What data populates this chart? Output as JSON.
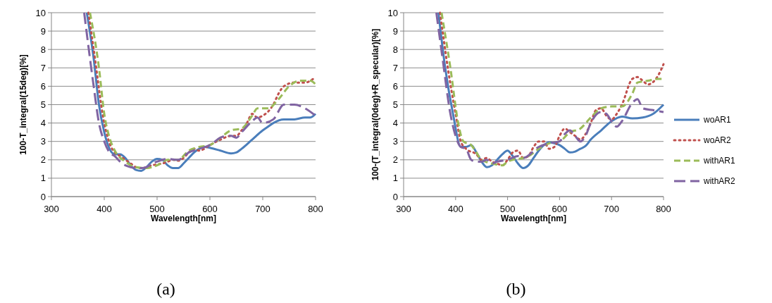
{
  "chart_data": [
    {
      "type": "line",
      "xlabel": "Wavelength[nm]",
      "ylabel": "100-T_integral(15deg)[%]",
      "annotations": [
        "(a)"
      ],
      "xlim": [
        300,
        800
      ],
      "xticks": [
        300,
        400,
        500,
        600,
        700,
        800
      ],
      "ylim": [
        0,
        10
      ],
      "yticks": [
        0,
        1,
        2,
        3,
        4,
        5,
        6,
        7,
        8,
        9,
        10
      ],
      "grid": "y",
      "legend": false,
      "series": [
        {
          "color": "#4a7ebb",
          "line_style": "solid",
          "x": [
            367,
            380,
            390,
            400,
            410,
            420,
            430,
            440,
            450,
            460,
            470,
            480,
            490,
            500,
            510,
            520,
            530,
            540,
            550,
            560,
            570,
            580,
            590,
            600,
            620,
            640,
            650,
            660,
            680,
            700,
            710,
            720,
            740,
            760,
            780,
            790,
            800
          ],
          "values": [
            10,
            7.5,
            5,
            3.5,
            2.6,
            2.3,
            2.3,
            2.1,
            1.7,
            1.45,
            1.4,
            1.6,
            1.9,
            2.05,
            2,
            1.7,
            1.55,
            1.55,
            1.8,
            2.1,
            2.4,
            2.6,
            2.7,
            2.65,
            2.5,
            2.35,
            2.4,
            2.6,
            3.1,
            3.6,
            3.8,
            4,
            4.2,
            4.2,
            4.3,
            4.3,
            4.5
          ]
        },
        {
          "color": "#c0504d",
          "line_style": "dotted",
          "x": [
            370,
            380,
            400,
            410,
            420,
            430,
            440,
            450,
            460,
            470,
            480,
            490,
            500,
            510,
            520,
            530,
            540,
            550,
            560,
            570,
            580,
            600,
            620,
            640,
            650,
            660,
            670,
            680,
            690,
            700,
            720,
            730,
            740,
            760,
            780,
            800
          ],
          "values": [
            10,
            8,
            4,
            2.9,
            2.4,
            2.2,
            2,
            1.8,
            1.6,
            1.55,
            1.6,
            1.7,
            1.75,
            1.8,
            1.9,
            2,
            1.95,
            2.1,
            2.4,
            2.6,
            2.5,
            2.8,
            3.1,
            3.3,
            3.3,
            3.6,
            4,
            4.5,
            4.3,
            4.4,
            5,
            5.6,
            6,
            6.2,
            6.2,
            6.5
          ]
        },
        {
          "color": "#9bbb59",
          "line_style": "dashed",
          "x": [
            373,
            390,
            400,
            410,
            420,
            440,
            460,
            480,
            500,
            520,
            540,
            560,
            580,
            600,
            620,
            640,
            660,
            680,
            690,
            700,
            710,
            730,
            750,
            770,
            790,
            800
          ],
          "values": [
            10,
            7,
            4.5,
            3.2,
            2.5,
            1.9,
            1.6,
            1.55,
            1.7,
            2,
            2,
            2.5,
            2.7,
            2.8,
            3.2,
            3.6,
            3.7,
            4.4,
            4.8,
            4.8,
            4.8,
            5.3,
            6,
            6.3,
            6.3,
            6.1
          ]
        },
        {
          "color": "#8064a2",
          "line_style": "dashed",
          "x": [
            362,
            380,
            390,
            400,
            410,
            420,
            430,
            440,
            450,
            460,
            470,
            480,
            490,
            500,
            520,
            540,
            560,
            580,
            600,
            620,
            630,
            640,
            650,
            660,
            680,
            690,
            700,
            720,
            740,
            760,
            780,
            800
          ],
          "values": [
            10,
            6,
            4,
            3,
            2.4,
            2.2,
            1.9,
            1.7,
            1.6,
            1.55,
            1.55,
            1.6,
            1.8,
            1.9,
            2.05,
            2,
            2.4,
            2.6,
            2.8,
            3.2,
            3.3,
            3.3,
            3.2,
            3.5,
            4.1,
            4.3,
            4,
            4.2,
            5,
            5,
            4.8,
            4.4
          ]
        }
      ]
    },
    {
      "type": "line",
      "xlabel": "Wavelength[nm]",
      "ylabel": "100-(T_integral(0deg)+R_specular)[%]",
      "annotations": [
        "(b)"
      ],
      "xlim": [
        300,
        800
      ],
      "xticks": [
        300,
        400,
        500,
        600,
        700,
        800
      ],
      "ylim": [
        0,
        10
      ],
      "yticks": [
        0,
        1,
        2,
        3,
        4,
        5,
        6,
        7,
        8,
        9,
        10
      ],
      "grid": "y",
      "legend": "right",
      "series": [
        {
          "name": "woAR1",
          "color": "#4a7ebb",
          "line_style": "solid",
          "x": [
            367,
            380,
            395,
            410,
            420,
            430,
            440,
            450,
            460,
            470,
            480,
            490,
            500,
            510,
            520,
            530,
            540,
            550,
            560,
            570,
            580,
            590,
            600,
            610,
            620,
            630,
            640,
            650,
            660,
            680,
            700,
            720,
            740,
            760,
            780,
            800
          ],
          "values": [
            10,
            7,
            4.5,
            2.7,
            2.7,
            2.8,
            2.4,
            1.9,
            1.6,
            1.7,
            2,
            2.3,
            2.5,
            2.2,
            1.8,
            1.55,
            1.7,
            2.1,
            2.5,
            2.8,
            2.95,
            2.9,
            2.8,
            2.6,
            2.4,
            2.45,
            2.6,
            2.75,
            3.1,
            3.6,
            4.1,
            4.35,
            4.25,
            4.3,
            4.5,
            5
          ]
        },
        {
          "name": "woAR2",
          "color": "#c0504d",
          "line_style": "dotted",
          "x": [
            370,
            385,
            400,
            410,
            420,
            440,
            450,
            460,
            470,
            480,
            490,
            500,
            510,
            520,
            530,
            540,
            550,
            560,
            570,
            580,
            590,
            600,
            610,
            620,
            630,
            640,
            650,
            660,
            670,
            680,
            690,
            700,
            710,
            720,
            740,
            750,
            760,
            770,
            790,
            800
          ],
          "values": [
            10,
            7,
            4.5,
            3,
            2.6,
            2.3,
            2,
            2.1,
            1.9,
            1.8,
            1.7,
            2,
            2.4,
            2.5,
            2.1,
            2.2,
            2.7,
            3,
            3,
            2.6,
            2.7,
            3.3,
            3.7,
            3.5,
            3.3,
            3.1,
            3.4,
            4,
            4.7,
            4.8,
            4.4,
            4.2,
            4.5,
            5,
            6.4,
            6.5,
            6.3,
            6.1,
            6.6,
            7.2
          ]
        },
        {
          "name": "withAR1",
          "color": "#9bbb59",
          "line_style": "dashed",
          "x": [
            373,
            390,
            405,
            415,
            430,
            440,
            450,
            470,
            490,
            500,
            510,
            530,
            540,
            560,
            580,
            600,
            620,
            640,
            660,
            680,
            700,
            720,
            740,
            750,
            770,
            790,
            800
          ],
          "values": [
            10,
            7,
            4,
            3,
            2.8,
            2.4,
            2,
            1.8,
            1.7,
            1.9,
            2,
            2.1,
            2.2,
            2.6,
            2.9,
            3,
            3.5,
            3.7,
            4.3,
            4.8,
            4.9,
            4.9,
            5.6,
            6.2,
            6.3,
            6.4,
            6.4
          ]
        },
        {
          "name": "withAR2",
          "color": "#8064a2",
          "line_style": "dashed",
          "x": [
            363,
            375,
            390,
            400,
            410,
            420,
            430,
            440,
            450,
            460,
            470,
            480,
            500,
            520,
            530,
            560,
            580,
            600,
            610,
            620,
            630,
            640,
            650,
            660,
            680,
            690,
            700,
            710,
            720,
            740,
            750,
            760,
            780,
            800
          ],
          "values": [
            10,
            7.5,
            4.5,
            3.3,
            2.7,
            2.6,
            2,
            1.9,
            1.9,
            2,
            1.8,
            1.9,
            2,
            2.2,
            2.1,
            2.7,
            2.9,
            3,
            3.4,
            3.6,
            3.3,
            3,
            3.3,
            4,
            4.6,
            4.5,
            4.1,
            3.8,
            4.1,
            5.1,
            5.3,
            4.8,
            4.7,
            4.6
          ]
        }
      ]
    }
  ]
}
